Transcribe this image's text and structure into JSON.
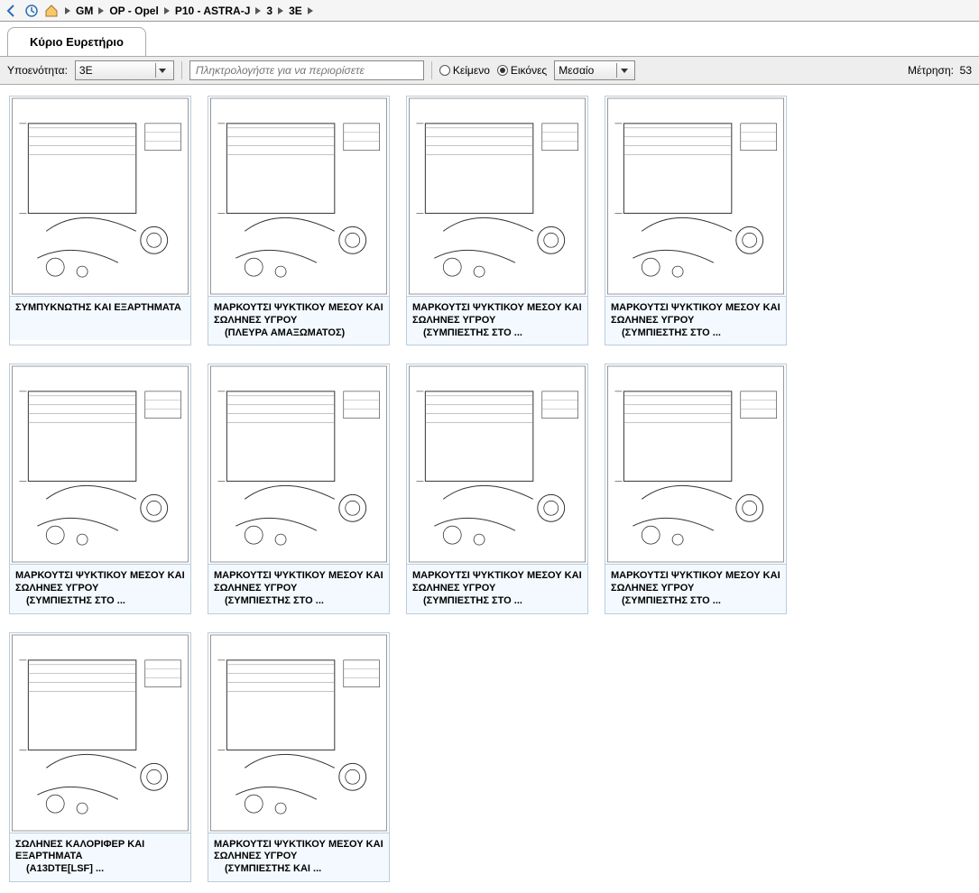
{
  "breadcrumb": [
    "GM",
    "OP - Opel",
    "P10 - ASTRA-J",
    "3",
    "3E"
  ],
  "tab": {
    "label": "Κύριο Ευρετήριο"
  },
  "filter": {
    "subunit_label": "Υποενότητα:",
    "subunit_value": "3E",
    "search_placeholder": "Πληκτρολογήστε για να περιορίσετε",
    "radio_text": "Κείμενο",
    "radio_images": "Εικόνες",
    "size_value": "Μεσαίο",
    "count_label": "Μέτρηση:",
    "count_value": "53"
  },
  "cards": [
    {
      "title": "ΣΥΜΠΥΚΝΩΤΗΣ ΚΑΙ ΕΞΑΡΤΗΜΑΤΑ",
      "sub": ""
    },
    {
      "title": "ΜΑΡΚΟΥΤΣΙ ΨΥΚΤΙΚΟΥ ΜΕΣΟΥ ΚΑΙ ΣΩΛΗΝΕΣ ΥΓΡΟΥ",
      "sub": "(ΠΛΕΥΡΑ ΑΜΑΞΩΜΑΤΟΣ)"
    },
    {
      "title": "ΜΑΡΚΟΥΤΣΙ ΨΥΚΤΙΚΟΥ ΜΕΣΟΥ ΚΑΙ ΣΩΛΗΝΕΣ ΥΓΡΟΥ",
      "sub": "(ΣΥΜΠΙΕΣΤΗΣ ΣΤΟ ..."
    },
    {
      "title": "ΜΑΡΚΟΥΤΣΙ ΨΥΚΤΙΚΟΥ ΜΕΣΟΥ ΚΑΙ ΣΩΛΗΝΕΣ ΥΓΡΟΥ",
      "sub": "(ΣΥΜΠΙΕΣΤΗΣ ΣΤΟ ..."
    },
    {
      "title": "ΜΑΡΚΟΥΤΣΙ ΨΥΚΤΙΚΟΥ ΜΕΣΟΥ ΚΑΙ ΣΩΛΗΝΕΣ ΥΓΡΟΥ",
      "sub": "(ΣΥΜΠΙΕΣΤΗΣ ΣΤΟ ..."
    },
    {
      "title": "ΜΑΡΚΟΥΤΣΙ ΨΥΚΤΙΚΟΥ ΜΕΣΟΥ ΚΑΙ ΣΩΛΗΝΕΣ ΥΓΡΟΥ",
      "sub": "(ΣΥΜΠΙΕΣΤΗΣ ΣΤΟ ..."
    },
    {
      "title": "ΜΑΡΚΟΥΤΣΙ ΨΥΚΤΙΚΟΥ ΜΕΣΟΥ ΚΑΙ ΣΩΛΗΝΕΣ ΥΓΡΟΥ",
      "sub": "(ΣΥΜΠΙΕΣΤΗΣ ΣΤΟ ..."
    },
    {
      "title": "ΜΑΡΚΟΥΤΣΙ ΨΥΚΤΙΚΟΥ ΜΕΣΟΥ ΚΑΙ ΣΩΛΗΝΕΣ ΥΓΡΟΥ",
      "sub": "(ΣΥΜΠΙΕΣΤΗΣ ΣΤΟ ..."
    },
    {
      "title": "ΣΩΛΗΝΕΣ ΚΑΛΟΡΙΦΕΡ ΚΑΙ ΕΞΑΡΤΗΜΑΤΑ",
      "sub": "(A13DTE[LSF] ..."
    },
    {
      "title": "ΜΑΡΚΟΥΤΣΙ ΨΥΚΤΙΚΟΥ ΜΕΣΟΥ ΚΑΙ ΣΩΛΗΝΕΣ ΥΓΡΟΥ",
      "sub": "(ΣΥΜΠΙΕΣΤΗΣ ΚΑΙ ..."
    }
  ],
  "colors": {
    "accent": "#2a6fb5",
    "border": "#bcd4e6",
    "caption_bg": "#f3f9ff"
  }
}
